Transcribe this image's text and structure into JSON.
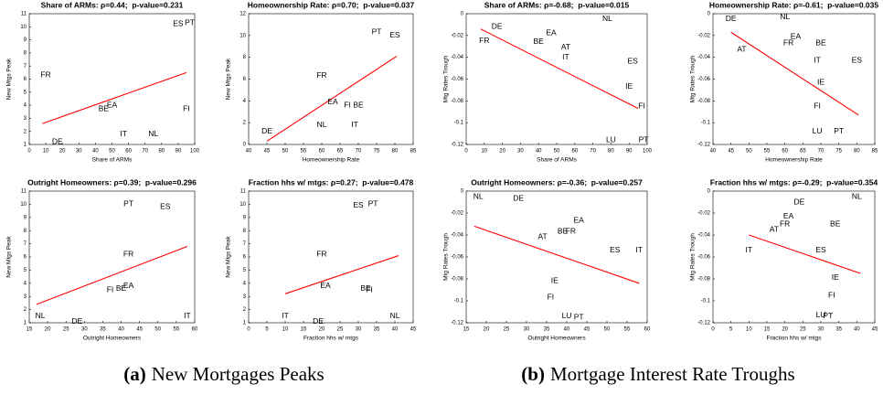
{
  "chart_data": [
    {
      "type": "scatter",
      "title": "Share of ARMs: ρ=0.44;  p-value=0.231",
      "xlabel": "Share of ARMs",
      "ylabel": "New Mtgs Peak",
      "labels": [
        "FR",
        "DE",
        "BE",
        "EA",
        "IT",
        "NL",
        "FI",
        "ES",
        "PT"
      ],
      "x": [
        10,
        17,
        45,
        50,
        57,
        75,
        95,
        90,
        97
      ],
      "y": [
        6.3,
        1.2,
        3.7,
        4,
        1.8,
        1.8,
        3.7,
        10.2,
        10.3
      ],
      "fit": {
        "x": [
          8,
          95
        ],
        "y": [
          2.6,
          6.5
        ],
        "color": "#ff0000"
      },
      "xlim": [
        0,
        100
      ],
      "xticks": [
        0,
        10,
        20,
        30,
        40,
        50,
        60,
        70,
        80,
        90,
        100
      ],
      "ylim": [
        1,
        11
      ],
      "yticks": [
        1,
        2,
        3,
        4,
        5,
        6,
        7,
        8,
        9,
        10,
        11
      ]
    },
    {
      "type": "scatter",
      "title": "Homeownership Rate: ρ=0.70;  p-value=0.037",
      "xlabel": "Homeownership Rate",
      "ylabel": "New Mtgs Peak",
      "labels": [
        "DE",
        "NL",
        "FR",
        "EA",
        "FI",
        "BE",
        "IT",
        "PT",
        "ES"
      ],
      "x": [
        45,
        60,
        60,
        63,
        67,
        70,
        69,
        75,
        80
      ],
      "y": [
        1.2,
        1.8,
        6.3,
        3.9,
        3.6,
        3.6,
        1.8,
        10.3,
        10
      ],
      "fit": {
        "x": [
          45,
          80.5
        ],
        "y": [
          0.3,
          8.1
        ],
        "color": "#ff0000"
      },
      "xlim": [
        40,
        85
      ],
      "xticks": [
        40,
        45,
        50,
        55,
        60,
        65,
        70,
        75,
        80,
        85
      ],
      "ylim": [
        0,
        12
      ],
      "yticks": [
        0,
        2,
        4,
        6,
        8,
        10,
        12
      ]
    },
    {
      "type": "scatter",
      "title": "Share of ARMs: ρ=-0.68;  p-value=0.015",
      "xlabel": "Share of ARMs",
      "ylabel": "Mtg Rates Trough",
      "labels": [
        "DE",
        "FR",
        "EA",
        "BE",
        "AT",
        "IT",
        "NL",
        "ES",
        "IE",
        "FI",
        "LU",
        "PT"
      ],
      "x": [
        17,
        10,
        47,
        40,
        55,
        55,
        78,
        92,
        90,
        97,
        80,
        98
      ],
      "y": [
        -0.012,
        -0.025,
        -0.018,
        -0.026,
        -0.031,
        -0.04,
        -0.005,
        -0.044,
        -0.067,
        -0.085,
        -0.116,
        -0.116
      ],
      "fit": {
        "x": [
          8,
          95
        ],
        "y": [
          -0.014,
          -0.087
        ],
        "color": "#ff0000"
      },
      "xlim": [
        0,
        100
      ],
      "xticks": [
        0,
        10,
        20,
        30,
        40,
        50,
        60,
        70,
        80,
        90,
        100
      ],
      "ylim": [
        -0.12,
        0
      ],
      "yticks": [
        -0.12,
        -0.1,
        -0.08,
        -0.06,
        -0.04,
        -0.02,
        0
      ]
    },
    {
      "type": "scatter",
      "title": "Homeownership Rate: ρ=-0.61;  p-value=0.035",
      "xlabel": "Homeownership Rate",
      "ylabel": "Mtg Rates Trough",
      "labels": [
        "DE",
        "NL",
        "EA",
        "FR",
        "BE",
        "AT",
        "IT",
        "ES",
        "IE",
        "FI",
        "LU",
        "PT"
      ],
      "x": [
        45,
        60,
        63,
        61,
        70,
        48,
        69,
        80,
        70,
        69,
        69,
        75
      ],
      "y": [
        -0.005,
        -0.003,
        -0.021,
        -0.027,
        -0.027,
        -0.033,
        -0.043,
        -0.043,
        -0.063,
        -0.085,
        -0.108,
        -0.108
      ],
      "fit": {
        "x": [
          45,
          80.5
        ],
        "y": [
          -0.017,
          -0.093
        ],
        "color": "#ff0000"
      },
      "xlim": [
        40,
        85
      ],
      "xticks": [
        40,
        45,
        50,
        55,
        60,
        65,
        70,
        75,
        80,
        85
      ],
      "ylim": [
        -0.12,
        0
      ],
      "yticks": [
        -0.12,
        -0.1,
        -0.08,
        -0.06,
        -0.04,
        -0.02,
        0
      ]
    },
    {
      "type": "scatter",
      "title": "Outright Homeowners: ρ=0.39;  p-value=0.296",
      "xlabel": "Outright Homeowners",
      "ylabel": "New Mtgs Peak",
      "labels": [
        "NL",
        "DE",
        "FI",
        "BE",
        "EA",
        "FR",
        "PT",
        "ES",
        "IT"
      ],
      "x": [
        18,
        28,
        37,
        40,
        42,
        42,
        42,
        52,
        58
      ],
      "y": [
        1.5,
        1.1,
        3.5,
        3.6,
        3.8,
        6.2,
        10,
        9.8,
        1.5
      ],
      "fit": {
        "x": [
          17,
          58
        ],
        "y": [
          2.4,
          6.8
        ],
        "color": "#ff0000"
      },
      "xlim": [
        15,
        60
      ],
      "xticks": [
        15,
        20,
        25,
        30,
        35,
        40,
        45,
        50,
        55,
        60
      ],
      "ylim": [
        1,
        11
      ],
      "yticks": [
        1,
        2,
        3,
        4,
        5,
        6,
        7,
        8,
        9,
        10,
        11
      ]
    },
    {
      "type": "scatter",
      "title": "Fraction hhs w/ mtgs: ρ=0.27;  p-value=0.478",
      "xlabel": "Fraction hhs w/ mtgs",
      "ylabel": "New Mtgs Peak",
      "labels": [
        "IT",
        "DE",
        "FR",
        "EA",
        "BE",
        "FI",
        "ES",
        "PT",
        "NL"
      ],
      "x": [
        10,
        19,
        20,
        21,
        32,
        33,
        30,
        34,
        40
      ],
      "y": [
        1.5,
        1.1,
        6.2,
        3.8,
        3.6,
        3.5,
        9.9,
        10,
        1.5
      ],
      "fit": {
        "x": [
          10,
          41
        ],
        "y": [
          3.2,
          6.1
        ],
        "color": "#ff0000"
      },
      "xlim": [
        0,
        45
      ],
      "xticks": [
        0,
        5,
        10,
        15,
        20,
        25,
        30,
        35,
        40,
        45
      ],
      "ylim": [
        1,
        11
      ],
      "yticks": [
        1,
        2,
        3,
        4,
        5,
        6,
        7,
        8,
        9,
        10,
        11
      ]
    },
    {
      "type": "scatter",
      "title": "Outright Homeowners: ρ=-0.36;  p-value=0.257",
      "xlabel": "Outright Homeowners",
      "ylabel": "Mtg Rates Trough",
      "labels": [
        "NL",
        "DE",
        "EA",
        "BE",
        "FR",
        "AT",
        "ES",
        "IT",
        "IE",
        "FI",
        "LU",
        "PT"
      ],
      "x": [
        18,
        28,
        43,
        39,
        41,
        34,
        52,
        58,
        37,
        36,
        40,
        43
      ],
      "y": [
        -0.005,
        -0.007,
        -0.027,
        -0.037,
        -0.037,
        -0.042,
        -0.054,
        -0.054,
        -0.082,
        -0.097,
        -0.114,
        -0.115
      ],
      "fit": {
        "x": [
          17,
          58
        ],
        "y": [
          -0.032,
          -0.084
        ],
        "color": "#ff0000"
      },
      "xlim": [
        15,
        60
      ],
      "xticks": [
        15,
        20,
        25,
        30,
        35,
        40,
        45,
        50,
        55,
        60
      ],
      "ylim": [
        -0.12,
        0
      ],
      "yticks": [
        -0.12,
        -0.1,
        -0.08,
        -0.06,
        -0.04,
        -0.02,
        0
      ]
    },
    {
      "type": "scatter",
      "title": "Fraction hhs w/ mtgs: ρ=-0.29;  p-value=0.354",
      "xlabel": "Fraction hhs w/ mtgs",
      "ylabel": "Mtg Rates Trough",
      "labels": [
        "NL",
        "DE",
        "EA",
        "FR",
        "AT",
        "BE",
        "IT",
        "ES",
        "IE",
        "FI",
        "LU",
        "PT"
      ],
      "x": [
        40,
        24,
        21,
        20,
        17,
        34,
        10,
        30,
        34,
        33,
        30,
        32
      ],
      "y": [
        -0.005,
        -0.01,
        -0.023,
        -0.03,
        -0.035,
        -0.03,
        -0.054,
        -0.054,
        -0.079,
        -0.095,
        -0.113,
        -0.114
      ],
      "fit": {
        "x": [
          10,
          41
        ],
        "y": [
          -0.04,
          -0.075
        ],
        "color": "#ff0000"
      },
      "xlim": [
        0,
        45
      ],
      "xticks": [
        0,
        5,
        10,
        15,
        20,
        25,
        30,
        35,
        40,
        45
      ],
      "ylim": [
        -0.12,
        0
      ],
      "yticks": [
        -0.12,
        -0.1,
        -0.08,
        -0.06,
        -0.04,
        -0.02,
        0
      ]
    }
  ],
  "captions": [
    {
      "tag": "(a)",
      "text": "New Mortgages Peaks"
    },
    {
      "tag": "(b)",
      "text": "Mortgage Interest Rate Troughs"
    }
  ]
}
